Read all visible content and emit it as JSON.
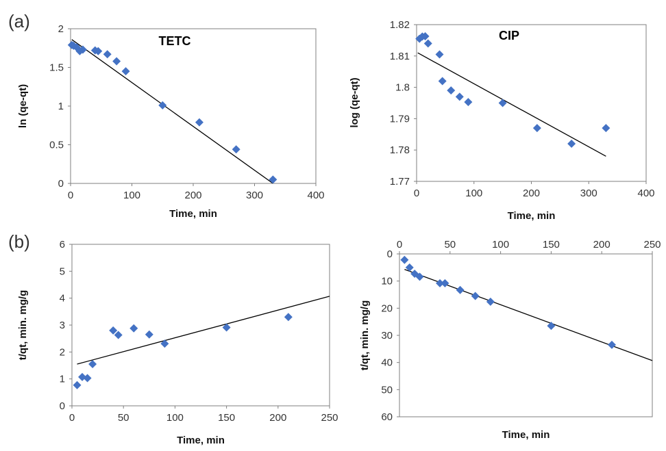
{
  "figure": {
    "panel_a": "(a)",
    "panel_b": "(b)",
    "marker_color": "#4472C4",
    "line_color": "#000000"
  },
  "chart_data": [
    {
      "type": "scatter",
      "title": "TETC",
      "xlabel": "Time, min",
      "ylabel": "ln (qe-qt)",
      "xlim": [
        0,
        400
      ],
      "ylim": [
        0,
        2
      ],
      "xticks": [
        0,
        100,
        200,
        300,
        400
      ],
      "yticks": [
        0,
        0.5,
        1,
        1.5,
        2
      ],
      "x_axis_position": "bottom",
      "y_inverted": false,
      "grid": false,
      "points": [
        {
          "x": 2,
          "y": 1.79
        },
        {
          "x": 5,
          "y": 1.78
        },
        {
          "x": 10,
          "y": 1.76
        },
        {
          "x": 15,
          "y": 1.71
        },
        {
          "x": 20,
          "y": 1.73
        },
        {
          "x": 40,
          "y": 1.72
        },
        {
          "x": 45,
          "y": 1.71
        },
        {
          "x": 60,
          "y": 1.67
        },
        {
          "x": 75,
          "y": 1.58
        },
        {
          "x": 90,
          "y": 1.45
        },
        {
          "x": 150,
          "y": 1.01
        },
        {
          "x": 210,
          "y": 0.79
        },
        {
          "x": 270,
          "y": 0.44
        },
        {
          "x": 330,
          "y": 0.05
        }
      ],
      "trendline": [
        [
          2,
          1.86
        ],
        [
          330,
          0.0
        ]
      ]
    },
    {
      "type": "scatter",
      "title": "CIP",
      "xlabel": "Time, min",
      "ylabel": "log (qe-qt)",
      "xlim": [
        0,
        400
      ],
      "ylim": [
        1.77,
        1.82
      ],
      "xticks": [
        0,
        100,
        200,
        300,
        400
      ],
      "yticks": [
        1.77,
        1.78,
        1.79,
        1.8,
        1.81,
        1.82
      ],
      "x_axis_position": "bottom",
      "y_inverted": false,
      "grid": false,
      "points": [
        {
          "x": 5,
          "y": 1.8155
        },
        {
          "x": 10,
          "y": 1.8162
        },
        {
          "x": 15,
          "y": 1.8163
        },
        {
          "x": 20,
          "y": 1.814
        },
        {
          "x": 40,
          "y": 1.8105
        },
        {
          "x": 45,
          "y": 1.802
        },
        {
          "x": 60,
          "y": 1.799
        },
        {
          "x": 75,
          "y": 1.797
        },
        {
          "x": 90,
          "y": 1.7953
        },
        {
          "x": 150,
          "y": 1.795
        },
        {
          "x": 210,
          "y": 1.787
        },
        {
          "x": 270,
          "y": 1.782
        },
        {
          "x": 330,
          "y": 1.787
        }
      ],
      "trendline": [
        [
          2,
          1.811
        ],
        [
          330,
          1.778
        ]
      ]
    },
    {
      "type": "scatter",
      "title": "",
      "xlabel": "Time, min",
      "ylabel": "t/qt, min. mg/g",
      "xlim": [
        0,
        250
      ],
      "ylim": [
        0,
        6
      ],
      "xticks": [
        0,
        50,
        100,
        150,
        200,
        250
      ],
      "yticks": [
        0,
        1,
        2,
        3,
        4,
        5,
        6
      ],
      "x_axis_position": "bottom",
      "y_inverted": false,
      "grid": false,
      "points": [
        {
          "x": 5,
          "y": 0.77
        },
        {
          "x": 10,
          "y": 1.07
        },
        {
          "x": 15,
          "y": 1.03
        },
        {
          "x": 20,
          "y": 1.55
        },
        {
          "x": 40,
          "y": 2.8
        },
        {
          "x": 45,
          "y": 2.63
        },
        {
          "x": 60,
          "y": 2.88
        },
        {
          "x": 75,
          "y": 2.65
        },
        {
          "x": 90,
          "y": 2.31
        },
        {
          "x": 150,
          "y": 2.91
        },
        {
          "x": 210,
          "y": 3.3
        }
      ],
      "trendline": [
        [
          5,
          1.55
        ],
        [
          250,
          4.07
        ]
      ]
    },
    {
      "type": "scatter",
      "title": "",
      "xlabel": "Time, min",
      "ylabel": "t/qt, min. mg/g",
      "xlim": [
        0,
        250
      ],
      "ylim": [
        0,
        60
      ],
      "xticks": [
        0,
        50,
        100,
        150,
        200,
        250
      ],
      "yticks": [
        0,
        10,
        20,
        30,
        40,
        50,
        60
      ],
      "x_axis_position": "top",
      "y_inverted": true,
      "grid": false,
      "points": [
        {
          "x": 5,
          "y": 2.2
        },
        {
          "x": 10,
          "y": 5.0
        },
        {
          "x": 15,
          "y": 7.3
        },
        {
          "x": 20,
          "y": 8.4
        },
        {
          "x": 40,
          "y": 10.8
        },
        {
          "x": 45,
          "y": 10.8
        },
        {
          "x": 60,
          "y": 13.3
        },
        {
          "x": 75,
          "y": 15.5
        },
        {
          "x": 90,
          "y": 17.6
        },
        {
          "x": 150,
          "y": 26.5
        },
        {
          "x": 210,
          "y": 33.5
        }
      ],
      "trendline": [
        [
          5,
          5.7
        ],
        [
          250,
          39.3
        ]
      ]
    }
  ]
}
